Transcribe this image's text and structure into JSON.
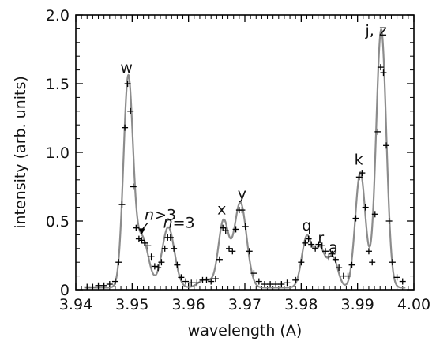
{
  "chart_data": {
    "type": "line",
    "title": "",
    "xlabel": "wavelength (A)",
    "ylabel": "intensity (arb. units)",
    "xlim": [
      3.94,
      4.0
    ],
    "ylim": [
      0,
      2.0
    ],
    "x_ticks": [
      "3.94",
      "3.95",
      "3.96",
      "3.97",
      "3.98",
      "3.99",
      "4.00"
    ],
    "y_ticks": [
      "0",
      "0.5",
      "1.0",
      "1.5",
      "2.0"
    ],
    "grid": false,
    "legend": "none",
    "series": [
      {
        "style": "gray-line",
        "color": "#8c8c8c",
        "peaks": [
          {
            "center": 3.9493,
            "height": 1.52,
            "width": 0.00085
          },
          {
            "center": 3.9518,
            "height": 0.36,
            "width": 0.0011
          },
          {
            "center": 3.9564,
            "height": 0.44,
            "width": 0.0011
          },
          {
            "center": 3.963,
            "height": 0.06,
            "width": 0.0012
          },
          {
            "center": 3.9662,
            "height": 0.48,
            "width": 0.0009
          },
          {
            "center": 3.9692,
            "height": 0.62,
            "width": 0.0011
          },
          {
            "center": 3.981,
            "height": 0.37,
            "width": 0.0009
          },
          {
            "center": 3.9833,
            "height": 0.28,
            "width": 0.0009
          },
          {
            "center": 3.9856,
            "height": 0.22,
            "width": 0.0009
          },
          {
            "center": 3.9905,
            "height": 0.84,
            "width": 0.0009
          },
          {
            "center": 3.9942,
            "height": 1.88,
            "width": 0.0009
          }
        ]
      },
      {
        "style": "black-plus-markers",
        "color": "#000000",
        "points": [
          [
            3.942,
            0.02
          ],
          [
            3.943,
            0.02
          ],
          [
            3.944,
            0.03
          ],
          [
            3.945,
            0.03
          ],
          [
            3.946,
            0.04
          ],
          [
            3.947,
            0.06
          ],
          [
            3.9476,
            0.2
          ],
          [
            3.9482,
            0.62
          ],
          [
            3.9487,
            1.18
          ],
          [
            3.9492,
            1.5
          ],
          [
            3.9497,
            1.3
          ],
          [
            3.9502,
            0.75
          ],
          [
            3.9507,
            0.45
          ],
          [
            3.9512,
            0.37
          ],
          [
            3.9517,
            0.36
          ],
          [
            3.9522,
            0.34
          ],
          [
            3.9528,
            0.32
          ],
          [
            3.9534,
            0.24
          ],
          [
            3.954,
            0.17
          ],
          [
            3.9546,
            0.16
          ],
          [
            3.9552,
            0.2
          ],
          [
            3.9558,
            0.3
          ],
          [
            3.9563,
            0.38
          ],
          [
            3.9568,
            0.38
          ],
          [
            3.9574,
            0.3
          ],
          [
            3.958,
            0.18
          ],
          [
            3.9587,
            0.09
          ],
          [
            3.9595,
            0.06
          ],
          [
            3.9605,
            0.05
          ],
          [
            3.9615,
            0.05
          ],
          [
            3.9625,
            0.07
          ],
          [
            3.9632,
            0.07
          ],
          [
            3.964,
            0.06
          ],
          [
            3.9648,
            0.08
          ],
          [
            3.9655,
            0.22
          ],
          [
            3.9661,
            0.45
          ],
          [
            3.9666,
            0.43
          ],
          [
            3.9672,
            0.3
          ],
          [
            3.9678,
            0.28
          ],
          [
            3.9684,
            0.44
          ],
          [
            3.969,
            0.58
          ],
          [
            3.9695,
            0.58
          ],
          [
            3.9701,
            0.46
          ],
          [
            3.9708,
            0.28
          ],
          [
            3.9716,
            0.12
          ],
          [
            3.9725,
            0.06
          ],
          [
            3.9735,
            0.04
          ],
          [
            3.9745,
            0.04
          ],
          [
            3.9755,
            0.04
          ],
          [
            3.9765,
            0.04
          ],
          [
            3.9775,
            0.05
          ],
          [
            3.979,
            0.07
          ],
          [
            3.98,
            0.2
          ],
          [
            3.9807,
            0.34
          ],
          [
            3.9813,
            0.37
          ],
          [
            3.9818,
            0.33
          ],
          [
            3.9825,
            0.3
          ],
          [
            3.9831,
            0.33
          ],
          [
            3.9837,
            0.32
          ],
          [
            3.9843,
            0.28
          ],
          [
            3.9849,
            0.24
          ],
          [
            3.9855,
            0.26
          ],
          [
            3.9861,
            0.22
          ],
          [
            3.9867,
            0.16
          ],
          [
            3.9875,
            0.1
          ],
          [
            3.9883,
            0.1
          ],
          [
            3.989,
            0.18
          ],
          [
            3.9897,
            0.52
          ],
          [
            3.9903,
            0.82
          ],
          [
            3.9908,
            0.85
          ],
          [
            3.9914,
            0.6
          ],
          [
            3.992,
            0.28
          ],
          [
            3.9926,
            0.2
          ],
          [
            3.9931,
            0.55
          ],
          [
            3.9936,
            1.15
          ],
          [
            3.9941,
            1.62
          ],
          [
            3.9946,
            1.58
          ],
          [
            3.9951,
            1.05
          ],
          [
            3.9956,
            0.5
          ],
          [
            3.9962,
            0.2
          ],
          [
            3.997,
            0.09
          ],
          [
            3.998,
            0.06
          ]
        ]
      }
    ],
    "annotations": [
      {
        "text": "w",
        "x": 3.949,
        "y": 1.58
      },
      {
        "text": "n>3",
        "x": 3.9522,
        "y": 0.51,
        "italic_part": "n",
        "arrow_to": [
          3.9517,
          0.4
        ]
      },
      {
        "text": "n=3",
        "x": 3.9555,
        "y": 0.45,
        "italic_part": "n"
      },
      {
        "text": "x",
        "x": 3.9659,
        "y": 0.55
      },
      {
        "text": "y",
        "x": 3.9695,
        "y": 0.66
      },
      {
        "text": "q",
        "x": 3.981,
        "y": 0.43
      },
      {
        "text": "r",
        "x": 3.9835,
        "y": 0.34
      },
      {
        "text": "a",
        "x": 3.9857,
        "y": 0.27
      },
      {
        "text": "k",
        "x": 3.9902,
        "y": 0.91
      },
      {
        "text": "j, z",
        "x": 3.9933,
        "y": 1.85
      }
    ]
  }
}
